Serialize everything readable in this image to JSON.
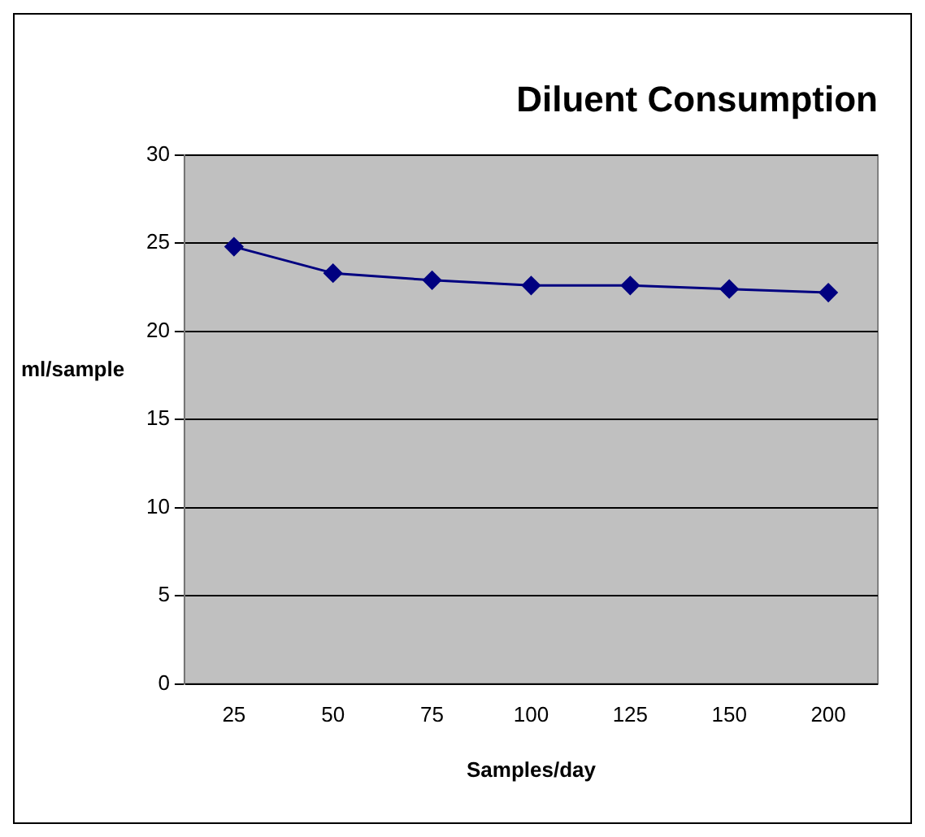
{
  "chart_data": {
    "type": "line",
    "title": "Diluent Consumption",
    "xlabel": "Samples/day",
    "ylabel": "ml/sample",
    "categories": [
      "25",
      "50",
      "75",
      "100",
      "125",
      "150",
      "200"
    ],
    "series": [
      {
        "color": "#000080",
        "values": [
          24.8,
          23.3,
          22.9,
          22.6,
          22.6,
          22.4,
          22.2
        ]
      }
    ],
    "ylim": [
      0,
      30
    ],
    "yticks": [
      0,
      5,
      10,
      15,
      20,
      25,
      30
    ],
    "grid": "y",
    "legend": false,
    "marker": "diamond",
    "line_style": "solid"
  }
}
